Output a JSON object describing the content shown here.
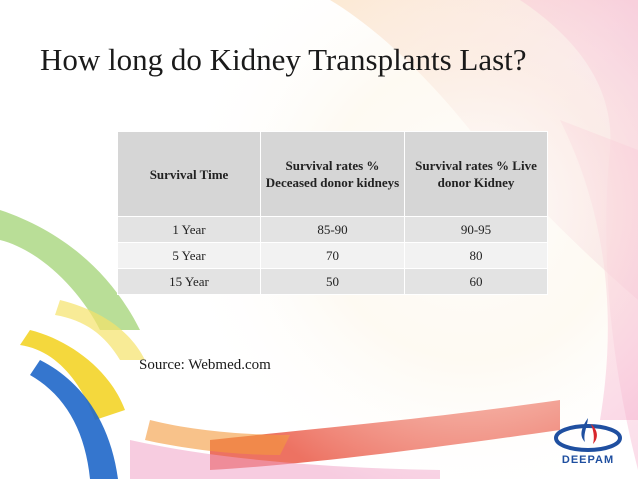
{
  "slide": {
    "title": "How long do Kidney Transplants Last?",
    "source": "Source: Webmed.com"
  },
  "table": {
    "headers": [
      "Survival Time",
      "Survival rates % Deceased donor kidneys",
      "Survival rates % Live donor Kidney"
    ],
    "rows": [
      [
        "1 Year",
        "85-90",
        "90-95"
      ],
      [
        "5 Year",
        "70",
        "80"
      ],
      [
        "15 Year",
        "50",
        "60"
      ]
    ]
  },
  "logo": {
    "text": "DEEPAM",
    "colors": {
      "blue": "#1f4fa0",
      "red": "#d8262c"
    }
  }
}
